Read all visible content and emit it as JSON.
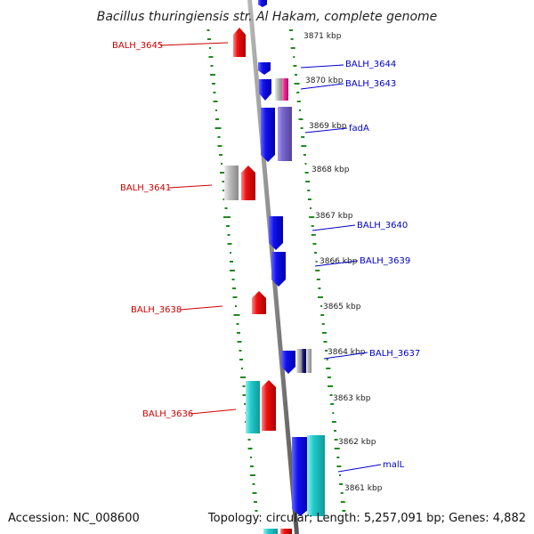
{
  "title": "Bacillus thuringiensis str. Al Hakam, complete genome",
  "accession": "Accession: NC_008600",
  "topology": "Topology: circular; Length: 5,257,091 bp; Genes: 4,882",
  "colors": {
    "forward_gene": "#ee1111",
    "reverse_gene": "#1111ee",
    "pseudogene": "#bbbbbb",
    "cyan_gene": "#22cccc",
    "purple_gene": "#7766cc",
    "magenta_gene": "#ee2299",
    "navy_gene": "#111166",
    "gc_dash": "#228822",
    "backbone": "#888888",
    "forward_label": "#cc0000",
    "reverse_label": "#0000cc"
  },
  "scale_labels": [
    "3871 kbp",
    "3870 kbp",
    "3869 kbp",
    "3868 kbp",
    "3867 kbp",
    "3866 kbp",
    "3865 kbp",
    "3864 kbp",
    "3863 kbp",
    "3862 kbp",
    "3861 kbp"
  ],
  "left_labels": [
    "BALH_3645",
    "BALH_3641",
    "BALH_3638",
    "BALH_3636"
  ],
  "right_labels": [
    "BALH_3644",
    "BALH_3643",
    "fadA",
    "BALH_3640",
    "BALH_3639",
    "BALH_3637",
    "malL"
  ]
}
